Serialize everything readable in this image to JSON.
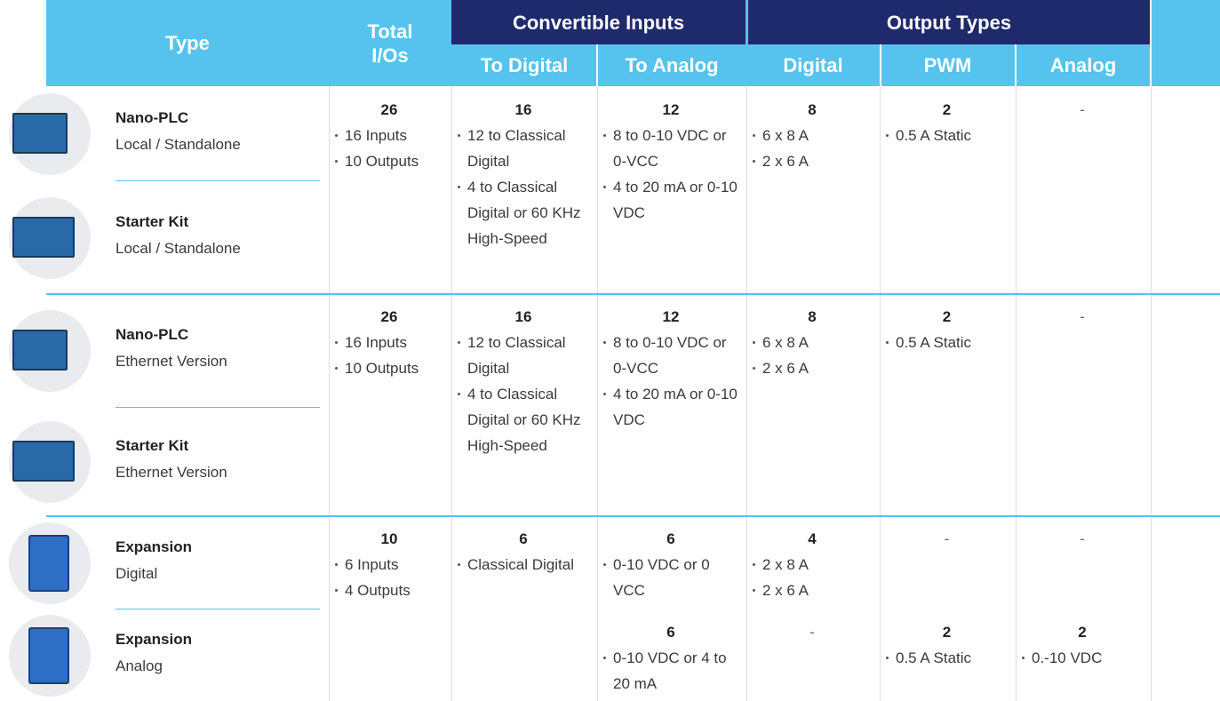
{
  "header": {
    "type": "Type",
    "total_ios": "Total I/Os",
    "convertible_inputs": {
      "title": "Convertible Inputs",
      "to_digital": "To Digital",
      "to_analog": "To Analog"
    },
    "output_types": {
      "title": "Output Types",
      "digital": "Digital",
      "pwm": "PWM",
      "analog": "Analog"
    }
  },
  "groups": [
    {
      "products": [
        {
          "name": "Nano-PLC",
          "subtitle": "Local / Standalone"
        },
        {
          "name": "Starter Kit",
          "subtitle": "Local / Standalone"
        }
      ],
      "total_ios": {
        "value": "26",
        "items": [
          "16 Inputs",
          "10 Outputs"
        ]
      },
      "to_digital": {
        "value": "16",
        "items": [
          "12 to Classical Digital",
          "4 to Classical Digital or 60 KHz High-Speed"
        ]
      },
      "rows": [
        {
          "to_analog": {
            "value": "12",
            "items": [
              "8 to 0-10 VDC or 0-VCC",
              "4 to 20 mA or 0-10 VDC"
            ]
          },
          "digital": {
            "value": "8",
            "items": [
              "6 x 8 A",
              "2 x 6 A"
            ]
          },
          "pwm": {
            "value": "2",
            "items": [
              "0.5 A Static"
            ]
          },
          "analog": {
            "value": "-"
          }
        }
      ]
    },
    {
      "products": [
        {
          "name": "Nano-PLC",
          "subtitle": "Ethernet Version"
        },
        {
          "name": "Starter Kit",
          "subtitle": "Ethernet Version"
        }
      ],
      "total_ios": {
        "value": "26",
        "items": [
          "16 Inputs",
          "10 Outputs"
        ]
      },
      "to_digital": {
        "value": "16",
        "items": [
          "12 to Classical Digital",
          "4 to Classical Digital or 60 KHz High-Speed"
        ]
      },
      "rows": [
        {
          "to_analog": {
            "value": "12",
            "items": [
              "8 to 0-10 VDC or 0-VCC",
              "4 to 20 mA or 0-10 VDC"
            ]
          },
          "digital": {
            "value": "8",
            "items": [
              "6 x 8 A",
              "2 x 6 A"
            ]
          },
          "pwm": {
            "value": "2",
            "items": [
              "0.5 A Static"
            ]
          },
          "analog": {
            "value": "-"
          }
        }
      ]
    },
    {
      "products": [
        {
          "name": "Expansion",
          "subtitle": "Digital"
        },
        {
          "name": "Expansion",
          "subtitle": "Analog"
        }
      ],
      "total_ios": {
        "value": "10",
        "items": [
          "6 Inputs",
          "4 Outputs"
        ]
      },
      "to_digital": {
        "value": "6",
        "items": [
          "Classical Digital"
        ]
      },
      "rows": [
        {
          "to_analog": {
            "value": "6",
            "items": [
              "0-10 VDC or 0 VCC"
            ]
          },
          "digital": {
            "value": "4",
            "items": [
              "2 x 8 A",
              "2 x 6 A"
            ]
          },
          "pwm": {
            "value": "-"
          },
          "analog": {
            "value": "-"
          }
        },
        {
          "to_analog": {
            "value": "6",
            "items": [
              "0-10 VDC or 4 to 20 mA"
            ]
          },
          "digital": {
            "value": "-"
          },
          "pwm": {
            "value": "2",
            "items": [
              "0.5 A Static"
            ]
          },
          "analog": {
            "value": "2",
            "items": [
              "0.-10 VDC"
            ]
          }
        }
      ]
    }
  ]
}
